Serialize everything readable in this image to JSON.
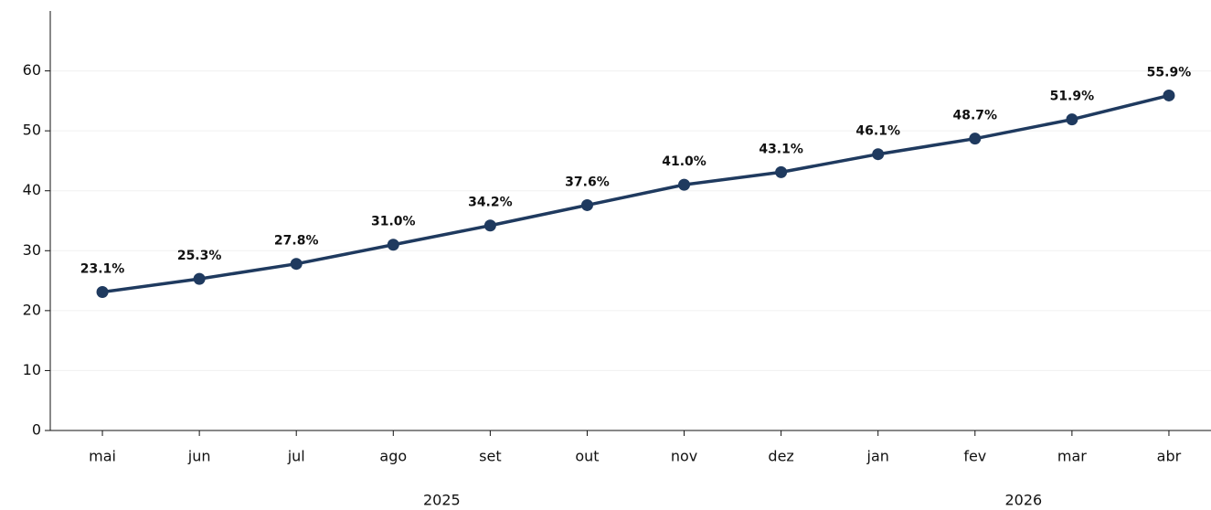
{
  "chart_data": {
    "type": "line",
    "categories": [
      "mai",
      "jun",
      "jul",
      "ago",
      "set",
      "out",
      "nov",
      "dez",
      "jan",
      "fev",
      "mar",
      "abr"
    ],
    "category_groups": [
      {
        "label": "2025",
        "span": 8
      },
      {
        "label": "2026",
        "span": 4
      }
    ],
    "values": [
      23.1,
      25.3,
      27.8,
      31.0,
      34.2,
      37.6,
      41.0,
      43.1,
      46.1,
      48.7,
      51.9,
      55.9
    ],
    "value_labels": [
      "23.1%",
      "25.3%",
      "27.8%",
      "31.0%",
      "34.2%",
      "37.6%",
      "41.0%",
      "43.1%",
      "46.1%",
      "48.7%",
      "51.9%",
      "55.9%"
    ],
    "color": "#1f3a5f",
    "ylim": [
      0,
      70
    ],
    "yticks": [
      0,
      10,
      20,
      30,
      40,
      50,
      60
    ],
    "grid": true
  }
}
